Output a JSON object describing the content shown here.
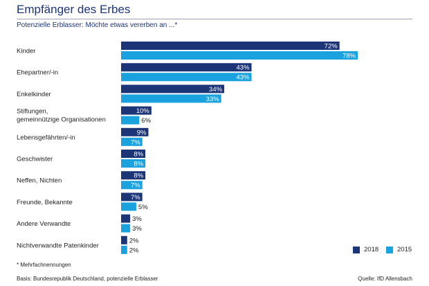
{
  "header": {
    "title": "Empfänger des Erbes",
    "subtitle": "Potenzielle Erblasser: Möchte etwas vererben an ...*"
  },
  "footer": {
    "footnote": "* Mehrfachnennungen",
    "basis": "Basis: Bundesrepublik Deutschland, potenzielle Erblasser",
    "source": "Quelle: IfD Allensbach"
  },
  "colors": {
    "2018": "#1c3577",
    "2015": "#1aa2de"
  },
  "chart_data": {
    "type": "bar",
    "orientation": "horizontal",
    "title": "Empfänger des Erbes",
    "subtitle": "Potenzielle Erblasser: Möchte etwas vererben an ...*",
    "categories": [
      [
        "Kinder"
      ],
      [
        "Ehepartner/-in"
      ],
      [
        "Enkelkinder"
      ],
      [
        "Stiftungen,",
        "gemeinnützige Organisationen"
      ],
      [
        "Lebensgefährten/-in"
      ],
      [
        "Geschwister"
      ],
      [
        "Neffen, Nichten"
      ],
      [
        "Freunde, Bekannte"
      ],
      [
        "Andere Verwandte"
      ],
      [
        "Nichtverwandte Patenkinder"
      ]
    ],
    "series": [
      {
        "name": "2018",
        "values": [
          72,
          43,
          34,
          10,
          9,
          8,
          8,
          7,
          3,
          2
        ]
      },
      {
        "name": "2015",
        "values": [
          78,
          43,
          33,
          6,
          7,
          8,
          7,
          5,
          3,
          2
        ]
      }
    ],
    "value_suffix": "%",
    "xlim": [
      0,
      78
    ],
    "grid": false,
    "legend_position": "bottom-right"
  }
}
